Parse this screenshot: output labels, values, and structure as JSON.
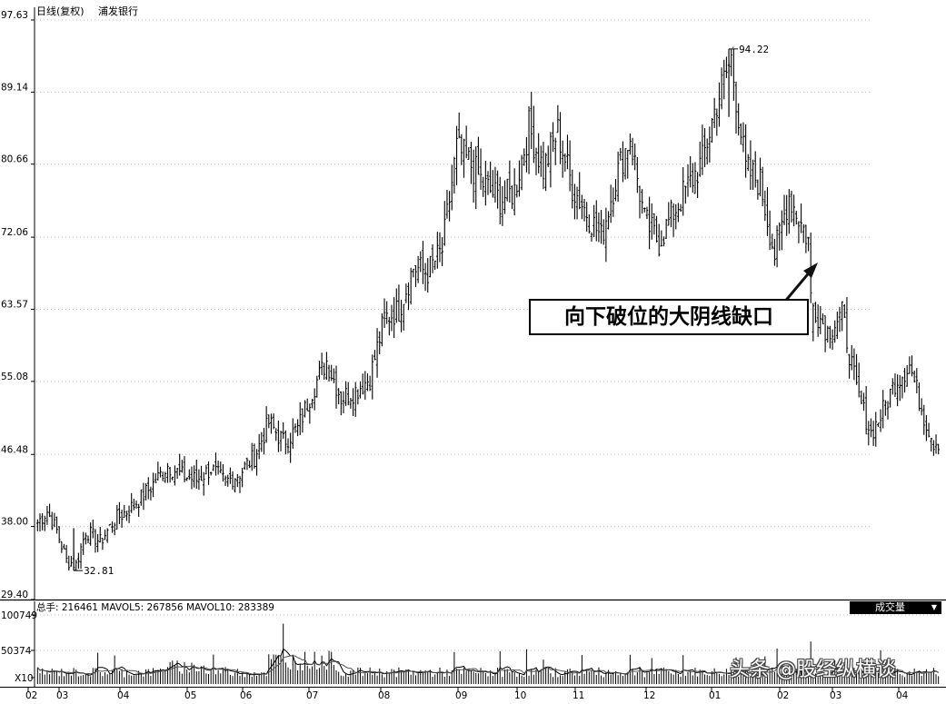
{
  "header": {
    "period": "日线(复权)",
    "stock_name": "浦发银行"
  },
  "price_panel": {
    "y_ticks": [
      "97.63",
      "89.14",
      "80.66",
      "72.06",
      "63.57",
      "55.08",
      "46.48",
      "38.00",
      "29.40"
    ],
    "high_label": "94.22",
    "low_label": "32.81",
    "annotation": "向下破位的大阴线缺口"
  },
  "volume_panel": {
    "legend": "总手: 216461 MAVOL5: 267856 MAVOL10: 283389",
    "indicator_button": "成交量",
    "dropdown_icon": "triangle-down-icon",
    "y_ticks": [
      "100749",
      "50374",
      "X10"
    ]
  },
  "x_axis": {
    "labels": [
      "02",
      "03",
      "04",
      "05",
      "06",
      "07",
      "08",
      "09",
      "10",
      "11",
      "12",
      "01",
      "02",
      "03",
      "04"
    ]
  },
  "watermark": "头条 @股经纵横谈",
  "chart_data": {
    "type": "candlestick",
    "title": "浦发银行",
    "subtitle": "日线(复权)",
    "y_range": [
      29.4,
      97.63
    ],
    "grid": true,
    "month_labels": [
      "02",
      "03",
      "04",
      "05",
      "06",
      "07",
      "08",
      "09",
      "10",
      "11",
      "12",
      "01",
      "02",
      "03",
      "04"
    ],
    "anchor_closes": [
      [
        0,
        38.5
      ],
      [
        4,
        39.8
      ],
      [
        8,
        37.5
      ],
      [
        12,
        34.0
      ],
      [
        16,
        33.5
      ],
      [
        20,
        37.5
      ],
      [
        26,
        36.2
      ],
      [
        32,
        38.8
      ],
      [
        38,
        40.0
      ],
      [
        46,
        42.3
      ],
      [
        54,
        45.2
      ],
      [
        60,
        44.0
      ],
      [
        66,
        43.5
      ],
      [
        72,
        44.8
      ],
      [
        78,
        43.2
      ],
      [
        84,
        44.3
      ],
      [
        90,
        46.2
      ],
      [
        96,
        50.2
      ],
      [
        102,
        48.0
      ],
      [
        108,
        49.5
      ],
      [
        114,
        54.0
      ],
      [
        120,
        57.5
      ],
      [
        126,
        53.2
      ],
      [
        132,
        54.0
      ],
      [
        138,
        55.5
      ],
      [
        144,
        62.5
      ],
      [
        150,
        63.5
      ],
      [
        156,
        68.5
      ],
      [
        162,
        68.0
      ],
      [
        168,
        70.5
      ],
      [
        174,
        82.5
      ],
      [
        180,
        80.5
      ],
      [
        186,
        78.0
      ],
      [
        192,
        76.5
      ],
      [
        198,
        77.5
      ],
      [
        204,
        85.0
      ],
      [
        210,
        80.0
      ],
      [
        216,
        84.5
      ],
      [
        222,
        78.0
      ],
      [
        228,
        75.0
      ],
      [
        234,
        72.0
      ],
      [
        240,
        79.0
      ],
      [
        246,
        84.0
      ],
      [
        252,
        74.0
      ],
      [
        258,
        71.5
      ],
      [
        264,
        75.0
      ],
      [
        270,
        78.0
      ],
      [
        276,
        81.0
      ],
      [
        282,
        88.0
      ],
      [
        288,
        93.0
      ],
      [
        294,
        80.0
      ],
      [
        300,
        78.5
      ],
      [
        306,
        70.0
      ],
      [
        312,
        77.0
      ],
      [
        318,
        73.0
      ],
      [
        321,
        71.0
      ],
      [
        322,
        64.0
      ],
      [
        328,
        61.0
      ],
      [
        334,
        63.0
      ],
      [
        340,
        54.0
      ],
      [
        346,
        49.0
      ],
      [
        350,
        51.0
      ],
      [
        356,
        55.0
      ],
      [
        362,
        57.0
      ],
      [
        368,
        51.0
      ],
      [
        372,
        48.0
      ]
    ],
    "gap_down_candle_index": 321,
    "high": 94.22,
    "low": 32.81,
    "annotations": [
      "94.22",
      "32.81",
      "向下破位的大阴线缺口"
    ],
    "volume": {
      "legend": {
        "总手": 216461,
        "MAVOL5": 267856,
        "MAVOL10": 283389
      },
      "y_ticks": [
        100749,
        50374
      ],
      "unit_label": "X10",
      "y_range": [
        0,
        100749
      ]
    }
  }
}
